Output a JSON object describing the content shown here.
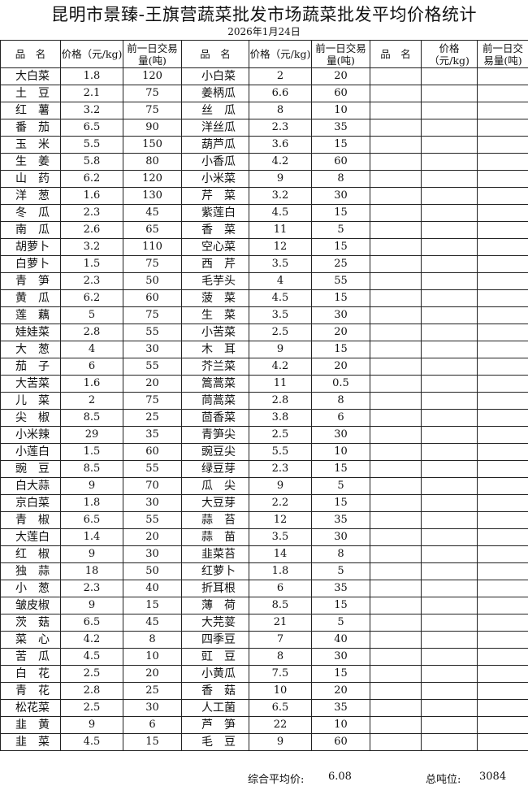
{
  "title": "昆明市景臻-王旗营蔬菜批发市场蔬菜批发平均价格统计",
  "date": "2026年1月24日",
  "headers": {
    "name": "品　名",
    "price": "价格（元/kg)",
    "volume": "前一日交易量(吨)"
  },
  "left": [
    [
      "大白菜",
      "1.8",
      "120"
    ],
    [
      "土　豆",
      "2.1",
      "75"
    ],
    [
      "红　薯",
      "3.2",
      "75"
    ],
    [
      "番　茄",
      "6.5",
      "90"
    ],
    [
      "玉　米",
      "5.5",
      "150"
    ],
    [
      "生　姜",
      "5.8",
      "80"
    ],
    [
      "山　药",
      "6.2",
      "120"
    ],
    [
      "洋　葱",
      "1.6",
      "130"
    ],
    [
      "冬　瓜",
      "2.3",
      "45"
    ],
    [
      "南　瓜",
      "2.6",
      "65"
    ],
    [
      "胡萝卜",
      "3.2",
      "110"
    ],
    [
      "白萝卜",
      "1.5",
      "75"
    ],
    [
      "青　笋",
      "2.3",
      "50"
    ],
    [
      "黄　瓜",
      "6.2",
      "60"
    ],
    [
      "莲　藕",
      "5",
      "75"
    ],
    [
      "娃娃菜",
      "2.8",
      "55"
    ],
    [
      "大　葱",
      "4",
      "30"
    ],
    [
      "茄　子",
      "6",
      "55"
    ],
    [
      "大苦菜",
      "1.6",
      "20"
    ],
    [
      "儿　菜",
      "2",
      "75"
    ],
    [
      "尖　椒",
      "8.5",
      "25"
    ],
    [
      "小米辣",
      "29",
      "35"
    ],
    [
      "小莲白",
      "1.5",
      "60"
    ],
    [
      "豌　豆",
      "8.5",
      "55"
    ],
    [
      "白大蒜",
      "9",
      "70"
    ],
    [
      "京白菜",
      "1.8",
      "30"
    ],
    [
      "青　椒",
      "6.5",
      "55"
    ],
    [
      "大莲白",
      "1.4",
      "20"
    ],
    [
      "红　椒",
      "9",
      "30"
    ],
    [
      "独　蒜",
      "18",
      "50"
    ],
    [
      "小　葱",
      "2.3",
      "40"
    ],
    [
      "皱皮椒",
      "9",
      "15"
    ],
    [
      "茨　菇",
      "6.5",
      "45"
    ],
    [
      "菜　心",
      "4.2",
      "8"
    ],
    [
      "苦　瓜",
      "4.5",
      "10"
    ],
    [
      "白　花",
      "2.5",
      "20"
    ],
    [
      "青　花",
      "2.8",
      "25"
    ],
    [
      "松花菜",
      "2.5",
      "30"
    ],
    [
      "韭　黄",
      "9",
      "6"
    ],
    [
      "韭　菜",
      "4.5",
      "15"
    ]
  ],
  "middle": [
    [
      "小白菜",
      "2",
      "20"
    ],
    [
      "姜柄瓜",
      "6.6",
      "60"
    ],
    [
      "丝　瓜",
      "8",
      "10"
    ],
    [
      "洋丝瓜",
      "2.3",
      "35"
    ],
    [
      "葫芦瓜",
      "3.6",
      "15"
    ],
    [
      "小香瓜",
      "4.2",
      "60"
    ],
    [
      "小米菜",
      "9",
      "8"
    ],
    [
      "芹　菜",
      "3.2",
      "30"
    ],
    [
      "紫莲白",
      "4.5",
      "15"
    ],
    [
      "香　菜",
      "11",
      "5"
    ],
    [
      "空心菜",
      "12",
      "15"
    ],
    [
      "西　芹",
      "3.5",
      "25"
    ],
    [
      "毛芋头",
      "4",
      "55"
    ],
    [
      "菠　菜",
      "4.5",
      "15"
    ],
    [
      "生　菜",
      "3.5",
      "30"
    ],
    [
      "小苦菜",
      "2.5",
      "20"
    ],
    [
      "木　耳",
      "9",
      "15"
    ],
    [
      "芥兰菜",
      "4.2",
      "20"
    ],
    [
      "篙蒿菜",
      "11",
      "0.5"
    ],
    [
      "茼蒿菜",
      "2.8",
      "8"
    ],
    [
      "茴香菜",
      "3.8",
      "6"
    ],
    [
      "青笋尖",
      "2.5",
      "30"
    ],
    [
      "豌豆尖",
      "5.5",
      "10"
    ],
    [
      "绿豆芽",
      "2.3",
      "15"
    ],
    [
      "瓜　尖",
      "9",
      "5"
    ],
    [
      "大豆芽",
      "2.2",
      "15"
    ],
    [
      "蒜　苔",
      "12",
      "35"
    ],
    [
      "蒜　苗",
      "3.5",
      "30"
    ],
    [
      "韭菜苔",
      "14",
      "8"
    ],
    [
      "红萝卜",
      "1.8",
      "5"
    ],
    [
      "折耳根",
      "6",
      "35"
    ],
    [
      "薄　荷",
      "8.5",
      "15"
    ],
    [
      "大芫荽",
      "21",
      "5"
    ],
    [
      "四季豆",
      "7",
      "40"
    ],
    [
      "豇　豆",
      "8",
      "30"
    ],
    [
      "小黄瓜",
      "7.5",
      "15"
    ],
    [
      "香　菇",
      "10",
      "20"
    ],
    [
      "人工菌",
      "6.5",
      "35"
    ],
    [
      "芦　笋",
      "22",
      "10"
    ],
    [
      "毛　豆",
      "9",
      "60"
    ]
  ],
  "footer": {
    "avg_label": "综合平均价:",
    "avg_value": "6.08",
    "total_label": "总吨位:",
    "total_value": "3084"
  }
}
